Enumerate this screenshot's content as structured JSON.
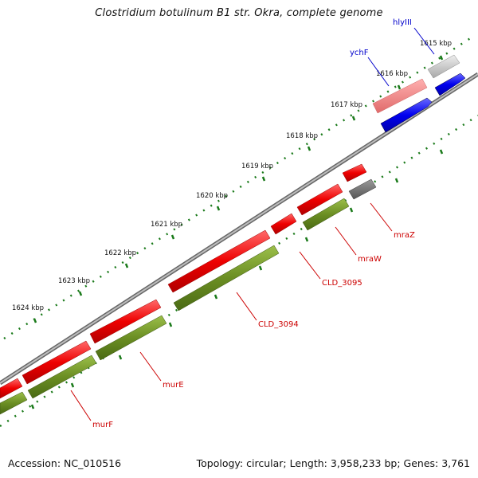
{
  "title": "Clostridium botulinum B1 str. Okra, complete genome",
  "footer": {
    "accession": "Accession: NC_010516",
    "summary": "Topology: circular; Length: 3,958,233 bp; Genes: 3,761"
  },
  "colors": {
    "background": "#ffffff",
    "backbone": "#8f8f8f",
    "forward_cds": "#ee0000",
    "reverse_cds": "#0000dd",
    "gene_track": "#6b8e23",
    "gene_label": "#cc0000",
    "blue_label": "#0000cc",
    "tick": "#1a7a1a"
  },
  "tick_labels": [
    "1615 kbp",
    "1616 kbp",
    "1617 kbp",
    "1618 kbp",
    "1619 kbp",
    "1620 kbp",
    "1621 kbp",
    "1622 kbp",
    "1623 kbp",
    "1624 kbp"
  ],
  "gene_labels": [
    {
      "text": "hlyIII",
      "color": "blue"
    },
    {
      "text": "ychF",
      "color": "blue"
    },
    {
      "text": "mraZ",
      "color": "red"
    },
    {
      "text": "mraW",
      "color": "red"
    },
    {
      "text": "CLD_3095",
      "color": "red"
    },
    {
      "text": "CLD_3094",
      "color": "red"
    },
    {
      "text": "murE",
      "color": "red"
    },
    {
      "text": "murF",
      "color": "red"
    }
  ]
}
